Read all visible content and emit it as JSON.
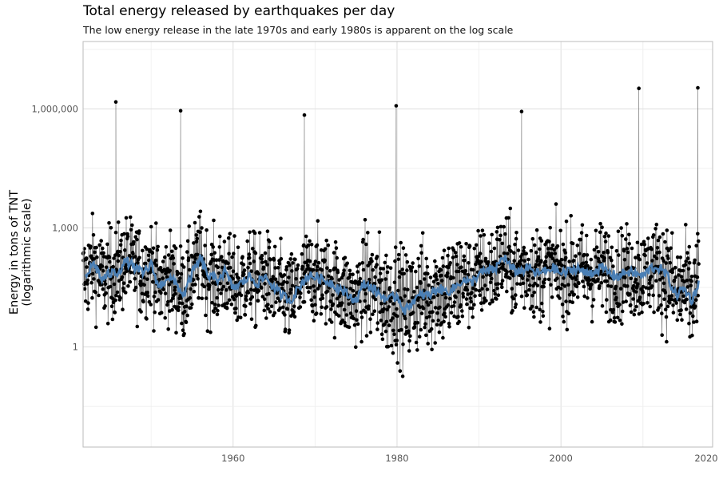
{
  "chart_data": {
    "type": "line",
    "title": "Total energy released by earthquakes per day",
    "subtitle": "The low energy release in the late 1970s and early 1980s is apparent on the log scale",
    "xlabel": "",
    "ylabel_line1": "Energy in tons of TNT",
    "ylabel_line2": "(logarithmic scale)",
    "xlim": [
      1941.7,
      2018.5
    ],
    "ylim": [
      0.003,
      50000000
    ],
    "y_scale": "log",
    "x_ticks": [
      1960,
      1980,
      2000,
      2020
    ],
    "x_tick_labels": [
      "1960",
      "1980",
      "2000",
      "2020"
    ],
    "y_ticks": [
      1,
      1000,
      1000000
    ],
    "y_tick_labels": [
      "1",
      "1,000",
      "1,000,000"
    ],
    "grid": true,
    "colors": {
      "points": "#000000",
      "stems": "#555555",
      "smooth": "#4a7fb5",
      "grid": "#dddddd",
      "border": "#bbbbbb"
    },
    "series": [
      {
        "kind": "daily-points",
        "x_range": [
          1941.7,
          2016.8
        ],
        "notes_visible": ""
      },
      {
        "kind": "smoothed-line",
        "x": [
          1942,
          1943,
          1944,
          1945,
          1946,
          1947,
          1948,
          1949,
          1950,
          1951,
          1952,
          1953,
          1954,
          1955,
          1956,
          1957,
          1958,
          1959,
          1960,
          1961,
          1962,
          1963,
          1964,
          1965,
          1966,
          1967,
          1968,
          1969,
          1970,
          1971,
          1972,
          1973,
          1974,
          1975,
          1976,
          1977,
          1978,
          1979,
          1980,
          1981,
          1982,
          1983,
          1984,
          1985,
          1986,
          1987,
          1988,
          1989,
          1990,
          1991,
          1992,
          1993,
          1994,
          1995,
          1996,
          1997,
          1998,
          1999,
          2000,
          2001,
          2002,
          2003,
          2004,
          2005,
          2006,
          2007,
          2008,
          2009,
          2010,
          2011,
          2012,
          2013,
          2014,
          2015,
          2016,
          2016.8
        ],
        "y": [
          60,
          130,
          50,
          70,
          80,
          150,
          100,
          70,
          120,
          30,
          60,
          40,
          20,
          70,
          170,
          60,
          50,
          80,
          30,
          40,
          60,
          40,
          60,
          30,
          20,
          15,
          30,
          60,
          60,
          50,
          40,
          30,
          20,
          15,
          40,
          30,
          20,
          15,
          20,
          8,
          15,
          20,
          20,
          30,
          25,
          30,
          50,
          40,
          70,
          80,
          90,
          200,
          90,
          80,
          100,
          70,
          80,
          100,
          70,
          80,
          100,
          70,
          80,
          100,
          70,
          60,
          80,
          70,
          60,
          100,
          100,
          60,
          20,
          30,
          15,
          40
        ]
      }
    ],
    "highlight_values": [
      {
        "x": 1945.7,
        "y": 1500000
      },
      {
        "x": 1953.6,
        "y": 900000
      },
      {
        "x": 1968.7,
        "y": 700000
      },
      {
        "x": 1979.9,
        "y": 1200000
      },
      {
        "x": 1995.2,
        "y": 860000
      },
      {
        "x": 2009.5,
        "y": 3300000
      },
      {
        "x": 2016.7,
        "y": 3400000
      }
    ]
  }
}
